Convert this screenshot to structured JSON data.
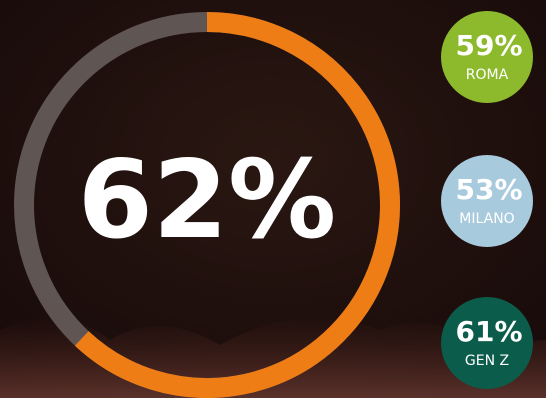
{
  "chart_data": {
    "type": "donut",
    "value": 62,
    "value_label": "62%",
    "color": "#ef7d16",
    "track_color": "#6b625f",
    "side": {
      "categories": [
        "ROMA",
        "MILANO",
        "GEN Z"
      ],
      "values": [
        59,
        53,
        61
      ],
      "value_labels": [
        "59%",
        "53%",
        "61%"
      ],
      "colors": [
        "#8cba2c",
        "#a8cadd",
        "#0c5c4c"
      ]
    }
  }
}
